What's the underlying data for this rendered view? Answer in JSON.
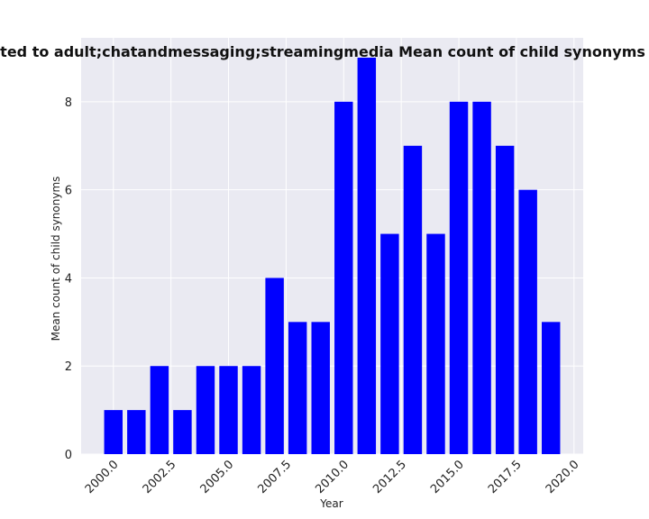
{
  "chart_data": {
    "type": "bar",
    "title": "are related to adult;chatandmessaging;streamingmedia Mean count of child synonyms in priva",
    "xlabel": "Year",
    "ylabel": "Mean count of child synonyms",
    "x": [
      2000,
      2001,
      2002,
      2003,
      2004,
      2005,
      2006,
      2007,
      2008,
      2009,
      2010,
      2011,
      2012,
      2013,
      2014,
      2015,
      2016,
      2017,
      2018,
      2019
    ],
    "values": [
      1,
      1,
      2,
      1,
      2,
      2,
      2,
      4,
      3,
      3,
      8,
      9,
      5,
      7,
      5,
      8,
      8,
      7,
      6,
      3
    ],
    "xlim": [
      1998.6,
      2020.4
    ],
    "ylim": [
      0,
      9.45
    ],
    "xticks": [
      "2000.0",
      "2002.5",
      "2005.0",
      "2007.5",
      "2010.0",
      "2012.5",
      "2015.0",
      "2017.5",
      "2020.0"
    ],
    "yticks": [
      "0",
      "2",
      "4",
      "6",
      "8"
    ],
    "bar_color": "#0000ff",
    "background_color": "#eaeaf2",
    "grid": true
  }
}
